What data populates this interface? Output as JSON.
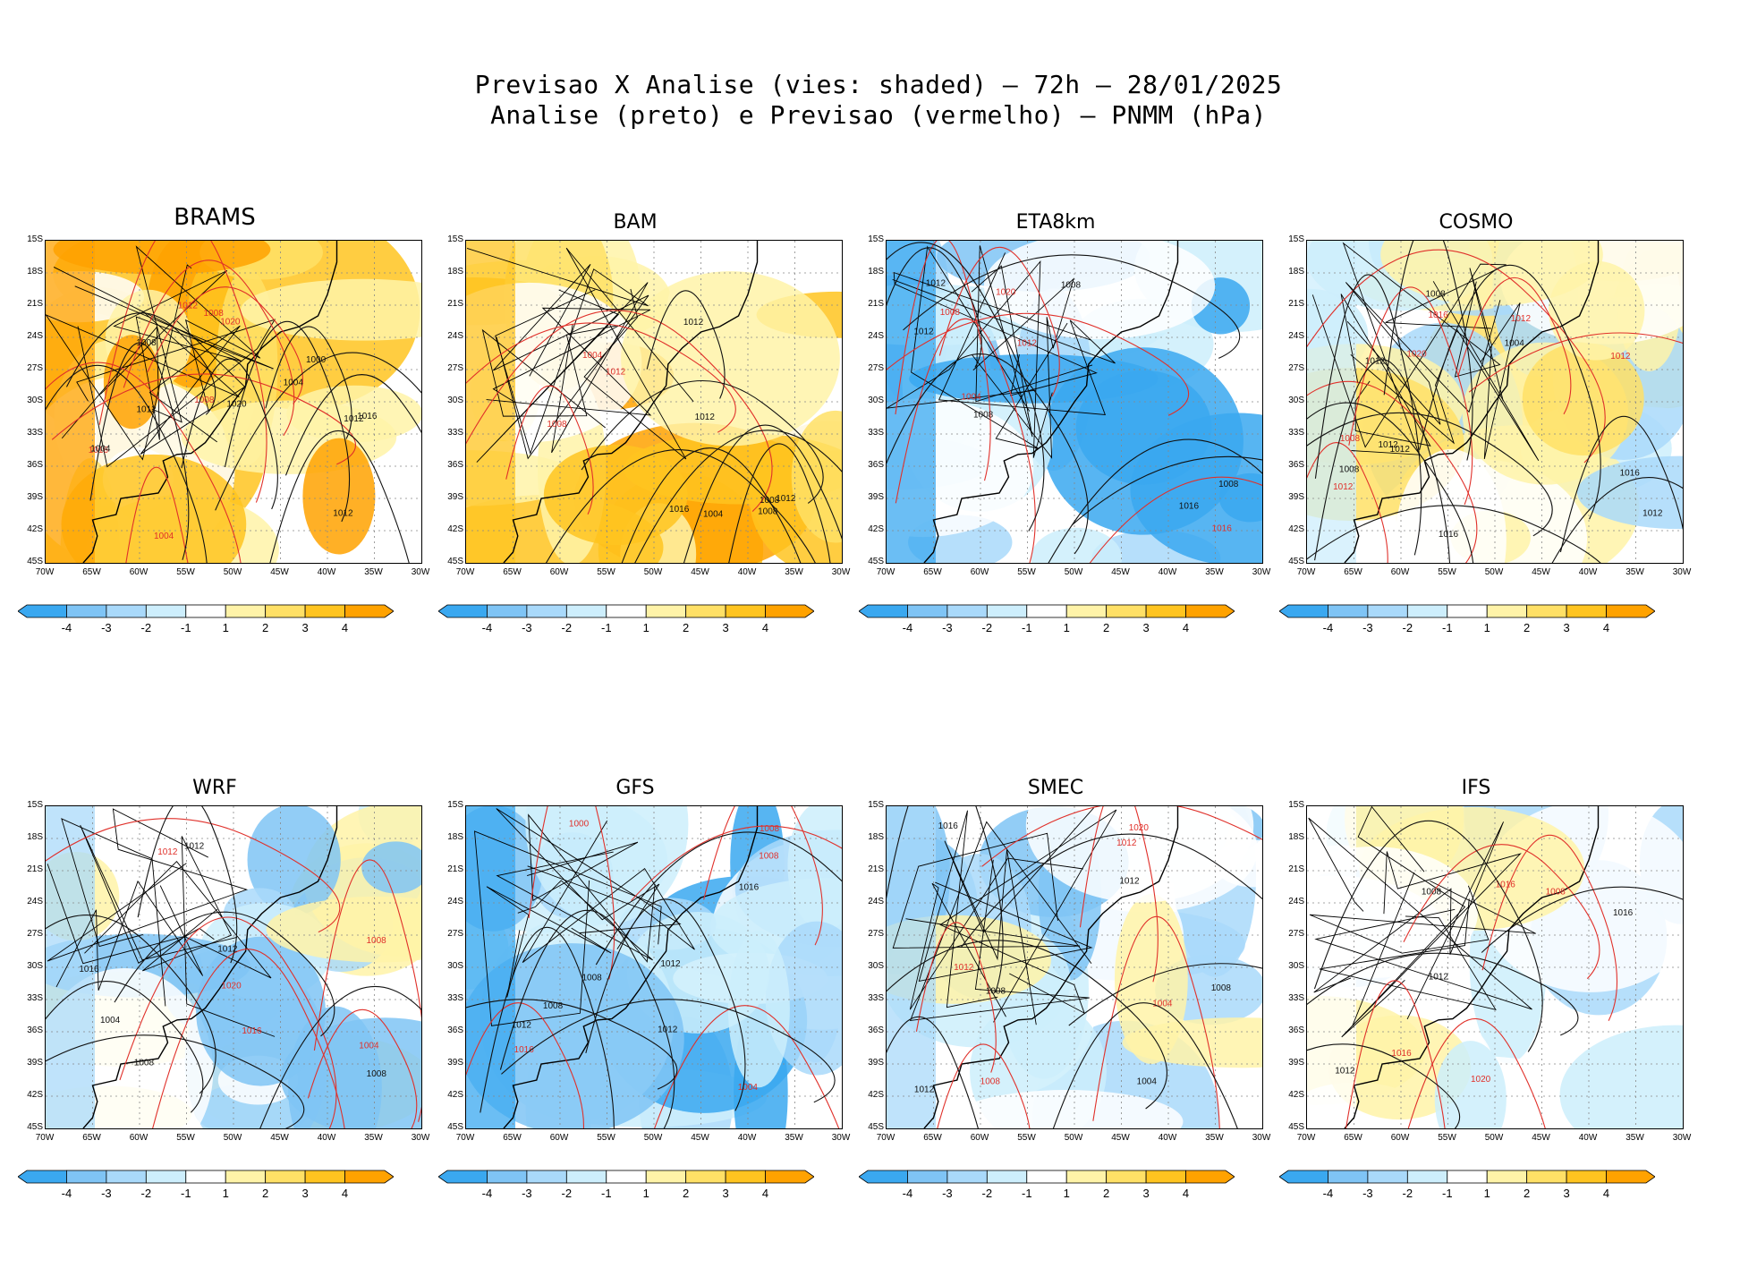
{
  "figure": {
    "title_line1": "Previsao X Analise (vies: shaded) — 72h — 28/01/2025",
    "title_line2": "Analise (preto) e Previsao (vermelho) — PNMM (hPa)"
  },
  "axes": {
    "lat_labels": [
      "15S",
      "18S",
      "21S",
      "24S",
      "27S",
      "30S",
      "33S",
      "36S",
      "39S",
      "42S",
      "45S"
    ],
    "lon_labels": [
      "70W",
      "65W",
      "60W",
      "55W",
      "50W",
      "45W",
      "40W",
      "35W",
      "30W"
    ]
  },
  "colorbar": {
    "labels": [
      "-4",
      "-3",
      "-2",
      "-1",
      "1",
      "2",
      "3",
      "4"
    ],
    "colors": [
      "#3aa8f0",
      "#7fc4f5",
      "#a9d9fa",
      "#cdeefc",
      "#ffffff",
      "#fff3a8",
      "#ffe066",
      "#ffc420",
      "#ffa200"
    ]
  },
  "panels": [
    {
      "name": "BRAMS",
      "bias": "warm-strong",
      "contour_labels_black": [
        "1004",
        "1012",
        "1000",
        "1004",
        "1008",
        "1012",
        "1012",
        "1016",
        "1020"
      ],
      "contour_labels_red": [
        "1008",
        "1004",
        "1008",
        "1012",
        "1016",
        "1020"
      ]
    },
    {
      "name": "BAM",
      "bias": "warm",
      "contour_labels_black": [
        "1012",
        "1004",
        "1008",
        "1008",
        "1012",
        "1012",
        "1016"
      ],
      "contour_labels_red": [
        "1004",
        "1008",
        "1012"
      ]
    },
    {
      "name": "ETA8km",
      "bias": "cold",
      "contour_labels_black": [
        "1008",
        "1012",
        "1008",
        "1008",
        "1012",
        "1016"
      ],
      "contour_labels_red": [
        "1004",
        "1008",
        "1012",
        "1016",
        "1020"
      ]
    },
    {
      "name": "COSMO",
      "bias": "mixed",
      "contour_labels_black": [
        "1012",
        "1008",
        "1016",
        "1004",
        "1012",
        "1008",
        "1012",
        "1016",
        "1012"
      ],
      "contour_labels_red": [
        "1008",
        "1012",
        "1016",
        "1020",
        "1012",
        "1012"
      ]
    },
    {
      "name": "WRF",
      "bias": "cold-weak",
      "contour_labels_black": [
        "1008",
        "1012",
        "1004",
        "1008",
        "1016",
        "1012"
      ],
      "contour_labels_red": [
        "1004",
        "1008",
        "1012",
        "1016",
        "1020"
      ]
    },
    {
      "name": "GFS",
      "bias": "cold",
      "contour_labels_black": [
        "1008",
        "1012",
        "1008",
        "1012",
        "1012",
        "1016"
      ],
      "contour_labels_red": [
        "1004",
        "1008",
        "1000",
        "1008",
        "1016"
      ]
    },
    {
      "name": "SMEC",
      "bias": "cold-weak",
      "contour_labels_black": [
        "1012",
        "1004",
        "1008",
        "1008",
        "1012",
        "1016"
      ],
      "contour_labels_red": [
        "1012",
        "1004",
        "1008",
        "1012",
        "1020"
      ]
    },
    {
      "name": "IFS",
      "bias": "neutral",
      "contour_labels_black": [
        "1008",
        "1012",
        "1016",
        "1012"
      ],
      "contour_labels_red": [
        "1016",
        "1008",
        "1016",
        "1020"
      ]
    }
  ]
}
